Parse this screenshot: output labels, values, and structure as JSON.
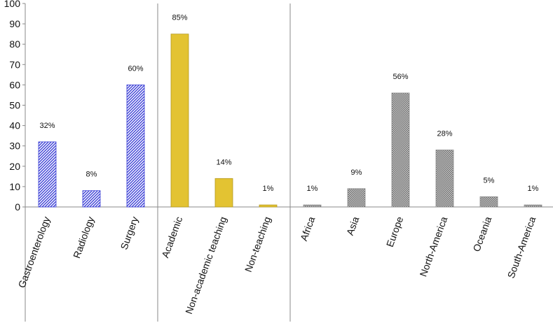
{
  "chart_data": {
    "type": "bar",
    "ylim": [
      0,
      100
    ],
    "yticks": [
      0,
      10,
      20,
      30,
      40,
      50,
      60,
      70,
      80,
      90,
      100
    ],
    "grid": false,
    "groups": [
      {
        "fill": "#3b3fd6",
        "pattern": "diagonal-hatch",
        "categories": [
          "Gastroenterology",
          "Radiology",
          "Surgery"
        ],
        "values": [
          32,
          8,
          60
        ],
        "labels": [
          "32%",
          "8%",
          "60%"
        ]
      },
      {
        "fill": "#e3c332",
        "pattern": "solid",
        "categories": [
          "Academic",
          "Non-academic teaching",
          "Non-teaching"
        ],
        "values": [
          85,
          14,
          1
        ],
        "labels": [
          "85%",
          "14%",
          "1%"
        ]
      },
      {
        "fill": "#9a9a9a",
        "pattern": "dotted",
        "categories": [
          "Africa",
          "Asia",
          "Europe",
          "North-America",
          "Oceania",
          "South-America"
        ],
        "values": [
          1,
          9,
          56,
          28,
          5,
          1
        ],
        "labels": [
          "1%",
          "9%",
          "56%",
          "28%",
          "5%",
          "1%"
        ]
      }
    ]
  }
}
